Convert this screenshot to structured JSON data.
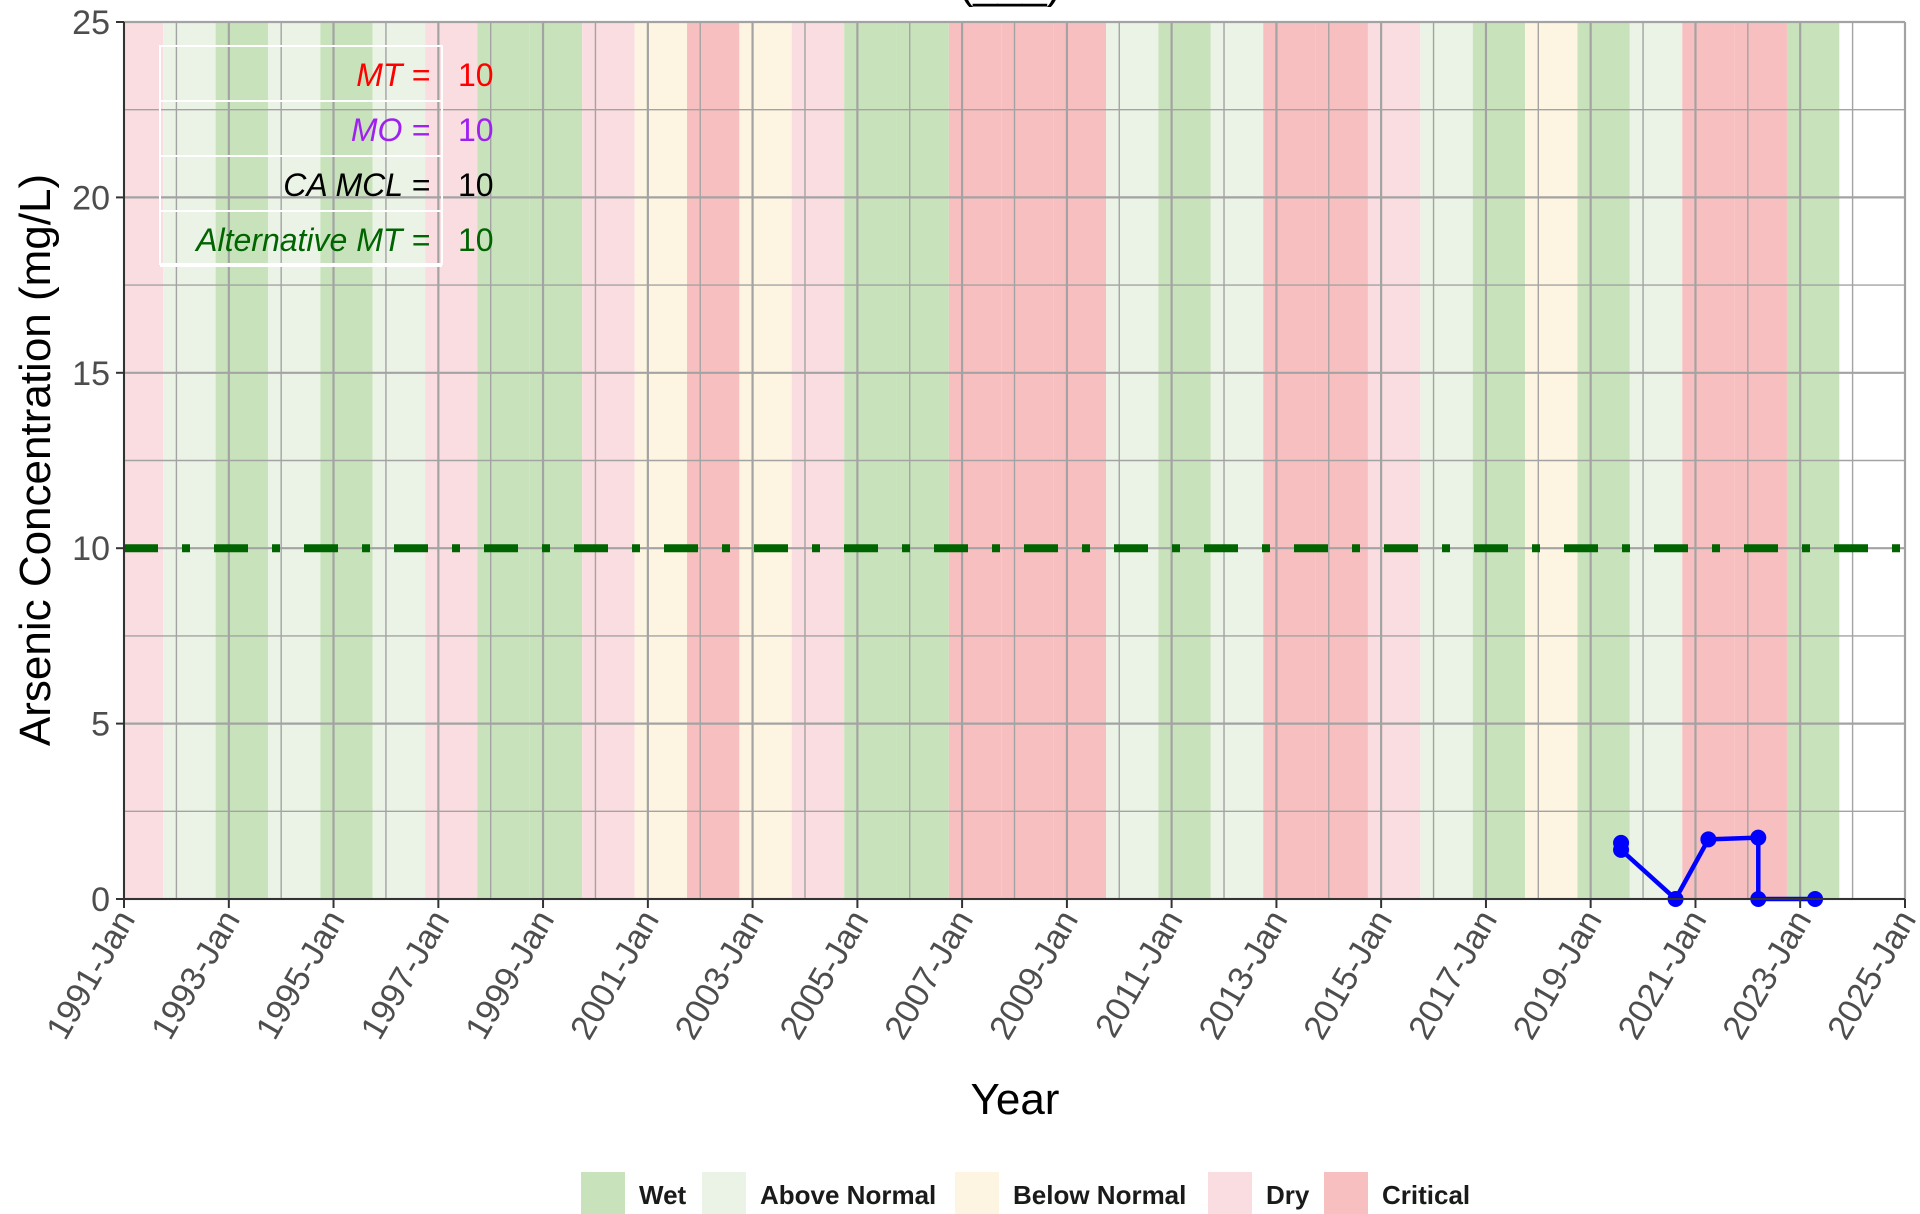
{
  "chart_data": {
    "type": "line",
    "title": "(___)",
    "xlabel": "Year",
    "ylabel": "Arsenic Concentration (mg/L)",
    "xlim": [
      "1991-01-01",
      "2025-01-01"
    ],
    "ylim": [
      0,
      25
    ],
    "yticks": [
      0,
      5,
      10,
      15,
      20,
      25
    ],
    "xticks": [
      {
        "date": "1991-01-01",
        "label": "1991-Jan"
      },
      {
        "date": "1993-01-01",
        "label": "1993-Jan"
      },
      {
        "date": "1995-01-01",
        "label": "1995-Jan"
      },
      {
        "date": "1997-01-01",
        "label": "1997-Jan"
      },
      {
        "date": "1999-01-01",
        "label": "1999-Jan"
      },
      {
        "date": "2001-01-01",
        "label": "2001-Jan"
      },
      {
        "date": "2003-01-01",
        "label": "2003-Jan"
      },
      {
        "date": "2005-01-01",
        "label": "2005-Jan"
      },
      {
        "date": "2007-01-01",
        "label": "2007-Jan"
      },
      {
        "date": "2009-01-01",
        "label": "2009-Jan"
      },
      {
        "date": "2011-01-01",
        "label": "2011-Jan"
      },
      {
        "date": "2013-01-01",
        "label": "2013-Jan"
      },
      {
        "date": "2015-01-01",
        "label": "2015-Jan"
      },
      {
        "date": "2017-01-01",
        "label": "2017-Jan"
      },
      {
        "date": "2019-01-01",
        "label": "2019-Jan"
      },
      {
        "date": "2021-01-01",
        "label": "2021-Jan"
      },
      {
        "date": "2023-01-01",
        "label": "2023-Jan"
      },
      {
        "date": "2025-01-01",
        "label": "2025-Jan"
      }
    ],
    "grid": true,
    "background_bands": [
      {
        "start": "1990-10-01",
        "end": "1991-10-01",
        "class": "Dry"
      },
      {
        "start": "1991-10-01",
        "end": "1992-10-01",
        "class": "Above Normal"
      },
      {
        "start": "1992-10-01",
        "end": "1993-10-01",
        "class": "Wet"
      },
      {
        "start": "1993-10-01",
        "end": "1994-10-01",
        "class": "Above Normal"
      },
      {
        "start": "1994-10-01",
        "end": "1995-10-01",
        "class": "Wet"
      },
      {
        "start": "1995-10-01",
        "end": "1996-10-01",
        "class": "Above Normal"
      },
      {
        "start": "1996-10-01",
        "end": "1997-10-01",
        "class": "Dry"
      },
      {
        "start": "1997-10-01",
        "end": "1998-10-01",
        "class": "Wet"
      },
      {
        "start": "1998-10-01",
        "end": "1999-10-01",
        "class": "Wet"
      },
      {
        "start": "1999-10-01",
        "end": "2000-10-01",
        "class": "Dry"
      },
      {
        "start": "2000-10-01",
        "end": "2001-10-01",
        "class": "Below Normal"
      },
      {
        "start": "2001-10-01",
        "end": "2002-10-01",
        "class": "Critical"
      },
      {
        "start": "2002-10-01",
        "end": "2003-10-01",
        "class": "Below Normal"
      },
      {
        "start": "2003-10-01",
        "end": "2004-10-01",
        "class": "Dry"
      },
      {
        "start": "2004-10-01",
        "end": "2005-10-01",
        "class": "Wet"
      },
      {
        "start": "2005-10-01",
        "end": "2006-10-01",
        "class": "Wet"
      },
      {
        "start": "2006-10-01",
        "end": "2007-10-01",
        "class": "Critical"
      },
      {
        "start": "2007-10-01",
        "end": "2008-10-01",
        "class": "Critical"
      },
      {
        "start": "2008-10-01",
        "end": "2009-10-01",
        "class": "Critical"
      },
      {
        "start": "2009-10-01",
        "end": "2010-10-01",
        "class": "Above Normal"
      },
      {
        "start": "2010-10-01",
        "end": "2011-10-01",
        "class": "Wet"
      },
      {
        "start": "2011-10-01",
        "end": "2012-10-01",
        "class": "Above Normal"
      },
      {
        "start": "2012-10-01",
        "end": "2013-10-01",
        "class": "Critical"
      },
      {
        "start": "2013-10-01",
        "end": "2014-10-01",
        "class": "Critical"
      },
      {
        "start": "2014-10-01",
        "end": "2015-10-01",
        "class": "Dry"
      },
      {
        "start": "2015-10-01",
        "end": "2016-10-01",
        "class": "Above Normal"
      },
      {
        "start": "2016-10-01",
        "end": "2017-10-01",
        "class": "Wet"
      },
      {
        "start": "2017-10-01",
        "end": "2018-10-01",
        "class": "Below Normal"
      },
      {
        "start": "2018-10-01",
        "end": "2019-10-01",
        "class": "Wet"
      },
      {
        "start": "2019-10-01",
        "end": "2020-10-01",
        "class": "Above Normal"
      },
      {
        "start": "2020-10-01",
        "end": "2021-10-01",
        "class": "Critical"
      },
      {
        "start": "2021-10-01",
        "end": "2022-10-01",
        "class": "Critical"
      },
      {
        "start": "2022-10-01",
        "end": "2023-10-01",
        "class": "Wet"
      }
    ],
    "band_colors": {
      "Wet": "#c8e3bb",
      "Above Normal": "#eaf3e6",
      "Below Normal": "#fdf5e1",
      "Dry": "#fadde0",
      "Critical": "#f8bfc0"
    },
    "legend": {
      "position": "bottom",
      "items": [
        "Wet",
        "Above Normal",
        "Below Normal",
        "Dry",
        "Critical"
      ]
    },
    "reference_line": {
      "y": 10,
      "color": "#006400",
      "style": "dashdot"
    },
    "series": [
      {
        "color": "#0000ff",
        "points": [
          {
            "x": "2019-08-01",
            "y": 1.6
          },
          {
            "x": "2019-08-01",
            "y": 1.4
          },
          {
            "x": "2020-08-15",
            "y": 0
          },
          {
            "x": "2021-04-01",
            "y": 1.7
          },
          {
            "x": "2022-03-15",
            "y": 1.75
          },
          {
            "x": "2022-03-15",
            "y": 0
          },
          {
            "x": "2023-04-15",
            "y": 0
          }
        ]
      }
    ],
    "thresholds": [
      {
        "label": "MT =",
        "value": "10",
        "color": "#ff0000"
      },
      {
        "label": "MO =",
        "value": "10",
        "color": "#a020f0"
      },
      {
        "label": "CA MCL =",
        "value": "10",
        "color": "#000000"
      },
      {
        "label": "Alternative MT =",
        "value": "10",
        "color": "#006400"
      }
    ]
  }
}
